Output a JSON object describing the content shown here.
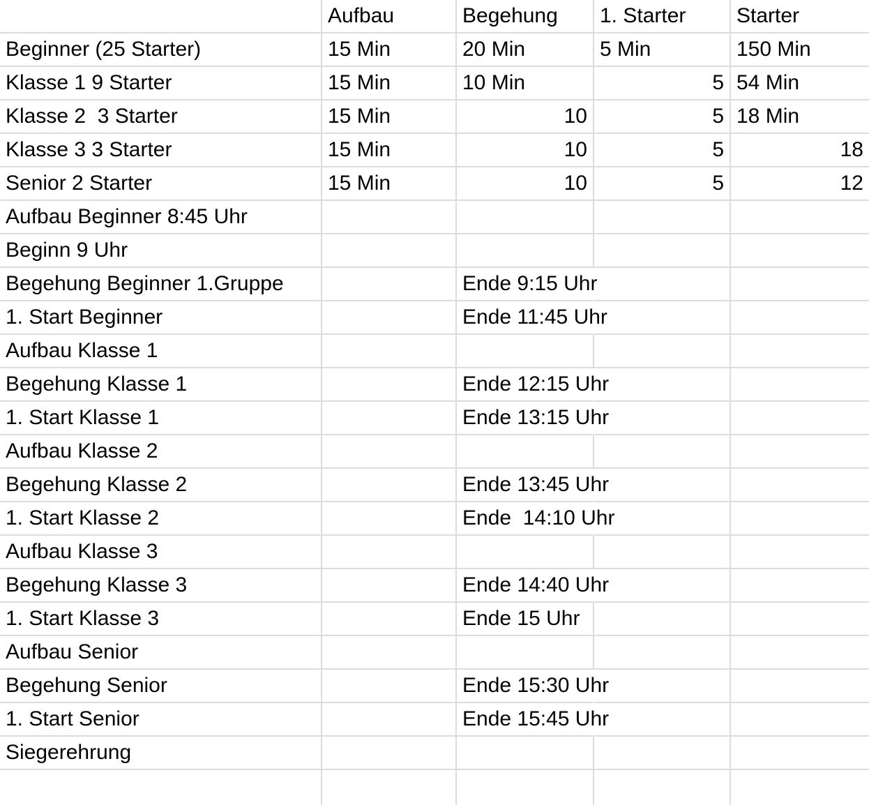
{
  "colors": {
    "background": "#ffffff",
    "gridline": "#dcdcdc",
    "text": "#000000"
  },
  "table": {
    "columns": [
      "",
      "Aufbau",
      "Begehung",
      "1. Starter",
      "Starter"
    ],
    "rows": [
      {
        "cells": [
          {
            "text": ""
          },
          {
            "text": "Aufbau"
          },
          {
            "text": "Begehung"
          },
          {
            "text": "1. Starter"
          },
          {
            "text": "Starter"
          }
        ]
      },
      {
        "cells": [
          {
            "text": "Beginner (25 Starter)"
          },
          {
            "text": "15 Min"
          },
          {
            "text": "20 Min"
          },
          {
            "text": "5 Min"
          },
          {
            "text": "150 Min"
          }
        ]
      },
      {
        "cells": [
          {
            "text": "Klasse 1 9 Starter"
          },
          {
            "text": "15 Min"
          },
          {
            "text": "10 Min"
          },
          {
            "text": "5",
            "align": "right"
          },
          {
            "text": "54 Min"
          }
        ]
      },
      {
        "cells": [
          {
            "text": "Klasse 2  3 Starter"
          },
          {
            "text": "15 Min"
          },
          {
            "text": "10",
            "align": "right"
          },
          {
            "text": "5",
            "align": "right"
          },
          {
            "text": "18 Min"
          }
        ]
      },
      {
        "cells": [
          {
            "text": "Klasse 3 3 Starter"
          },
          {
            "text": "15 Min"
          },
          {
            "text": "10",
            "align": "right"
          },
          {
            "text": "5",
            "align": "right"
          },
          {
            "text": "18",
            "align": "right"
          }
        ]
      },
      {
        "cells": [
          {
            "text": "Senior 2 Starter"
          },
          {
            "text": "15 Min"
          },
          {
            "text": "10",
            "align": "right"
          },
          {
            "text": "5",
            "align": "right"
          },
          {
            "text": "12",
            "align": "right"
          }
        ]
      },
      {
        "cells": [
          {
            "text": "Aufbau Beginner 8:45 Uhr"
          },
          {
            "text": ""
          },
          {
            "text": ""
          },
          {
            "text": ""
          },
          {
            "text": ""
          }
        ]
      },
      {
        "cells": [
          {
            "text": "Beginn 9 Uhr"
          },
          {
            "text": ""
          },
          {
            "text": ""
          },
          {
            "text": ""
          },
          {
            "text": ""
          }
        ]
      },
      {
        "cells": [
          {
            "text": "Begehung Beginner 1.Gruppe"
          },
          {
            "text": ""
          },
          {
            "text": "Ende 9:15 Uhr",
            "spill": true
          },
          {
            "text": ""
          },
          {
            "text": ""
          }
        ]
      },
      {
        "cells": [
          {
            "text": "1. Start Beginner"
          },
          {
            "text": ""
          },
          {
            "text": "Ende 11:45 Uhr",
            "spill": true
          },
          {
            "text": ""
          },
          {
            "text": ""
          }
        ]
      },
      {
        "cells": [
          {
            "text": "Aufbau Klasse 1"
          },
          {
            "text": ""
          },
          {
            "text": ""
          },
          {
            "text": ""
          },
          {
            "text": ""
          }
        ]
      },
      {
        "cells": [
          {
            "text": "Begehung Klasse 1"
          },
          {
            "text": ""
          },
          {
            "text": "Ende 12:15 Uhr",
            "spill": true
          },
          {
            "text": ""
          },
          {
            "text": ""
          }
        ]
      },
      {
        "cells": [
          {
            "text": "1. Start Klasse 1"
          },
          {
            "text": ""
          },
          {
            "text": "Ende 13:15 Uhr",
            "spill": true
          },
          {
            "text": ""
          },
          {
            "text": ""
          }
        ]
      },
      {
        "cells": [
          {
            "text": "Aufbau Klasse 2"
          },
          {
            "text": ""
          },
          {
            "text": ""
          },
          {
            "text": ""
          },
          {
            "text": ""
          }
        ]
      },
      {
        "cells": [
          {
            "text": "Begehung Klasse 2"
          },
          {
            "text": ""
          },
          {
            "text": "Ende 13:45 Uhr",
            "spill": true
          },
          {
            "text": ""
          },
          {
            "text": ""
          }
        ]
      },
      {
        "cells": [
          {
            "text": "1. Start Klasse 2"
          },
          {
            "text": ""
          },
          {
            "text": "Ende  14:10 Uhr",
            "spill": true
          },
          {
            "text": ""
          },
          {
            "text": ""
          }
        ]
      },
      {
        "cells": [
          {
            "text": "Aufbau Klasse 3"
          },
          {
            "text": ""
          },
          {
            "text": ""
          },
          {
            "text": ""
          },
          {
            "text": ""
          }
        ]
      },
      {
        "cells": [
          {
            "text": "Begehung Klasse 3"
          },
          {
            "text": ""
          },
          {
            "text": "Ende 14:40 Uhr",
            "spill": true
          },
          {
            "text": ""
          },
          {
            "text": ""
          }
        ]
      },
      {
        "cells": [
          {
            "text": "1. Start Klasse 3"
          },
          {
            "text": ""
          },
          {
            "text": "Ende 15 Uhr"
          },
          {
            "text": ""
          },
          {
            "text": ""
          }
        ]
      },
      {
        "cells": [
          {
            "text": "Aufbau Senior"
          },
          {
            "text": ""
          },
          {
            "text": ""
          },
          {
            "text": ""
          },
          {
            "text": ""
          }
        ]
      },
      {
        "cells": [
          {
            "text": "Begehung Senior"
          },
          {
            "text": ""
          },
          {
            "text": "Ende 15:30 Uhr",
            "spill": true
          },
          {
            "text": ""
          },
          {
            "text": ""
          }
        ]
      },
      {
        "cells": [
          {
            "text": "1. Start Senior"
          },
          {
            "text": ""
          },
          {
            "text": "Ende 15:45 Uhr",
            "spill": true
          },
          {
            "text": ""
          },
          {
            "text": ""
          }
        ]
      },
      {
        "cells": [
          {
            "text": "Siegerehrung"
          },
          {
            "text": ""
          },
          {
            "text": ""
          },
          {
            "text": ""
          },
          {
            "text": ""
          }
        ]
      },
      {
        "cells": [
          {
            "text": ""
          },
          {
            "text": ""
          },
          {
            "text": ""
          },
          {
            "text": ""
          },
          {
            "text": ""
          }
        ]
      }
    ]
  }
}
